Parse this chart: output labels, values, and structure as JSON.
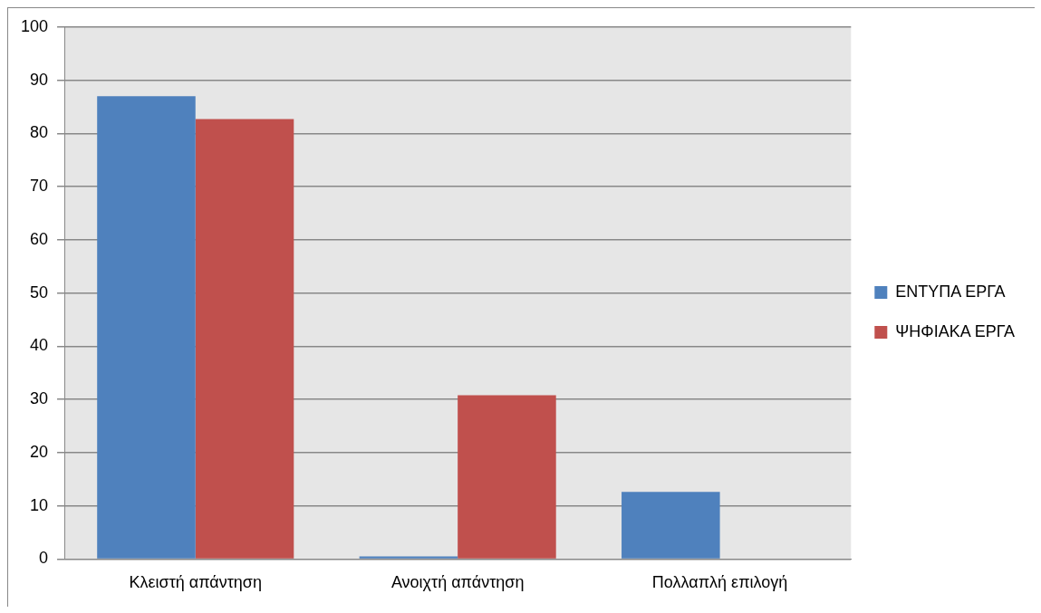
{
  "chart_data": {
    "type": "bar",
    "categories": [
      "Κλειστή απάντηση",
      "Ανοιχτή απάντηση",
      "Πολλαπλή επιλογή"
    ],
    "series": [
      {
        "name": "ΕΝΤΥΠΑ ΕΡΓΑ",
        "color": "#4f81bd",
        "values": [
          87,
          0.5,
          12.6
        ]
      },
      {
        "name": "ΨΗΦΙΑΚΑ ΕΡΓΑ",
        "color": "#c0504d",
        "values": [
          82.7,
          30.8,
          0
        ]
      }
    ],
    "ylim": [
      0,
      100
    ],
    "yticks": [
      0,
      10,
      20,
      30,
      40,
      50,
      60,
      70,
      80,
      90,
      100
    ],
    "grid": "y",
    "legend": "right"
  }
}
